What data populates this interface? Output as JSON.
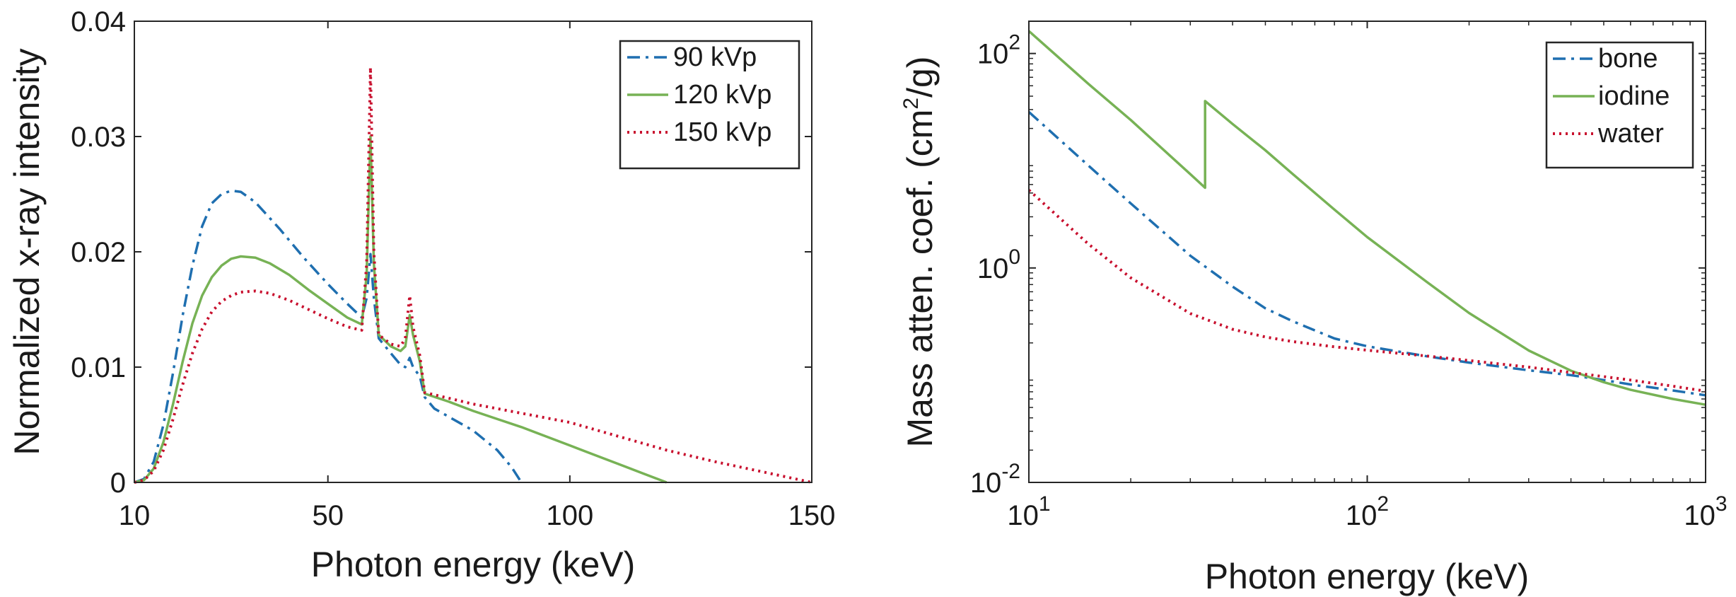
{
  "chart_data": [
    {
      "type": "line",
      "xlabel": "Photon energy (keV)",
      "ylabel": "Normalized x-ray intensity",
      "xlim": [
        10,
        150
      ],
      "ylim": [
        0,
        0.04
      ],
      "xticks": [
        10,
        50,
        100,
        150
      ],
      "xtick_labels": [
        "10",
        "50",
        "100",
        "150"
      ],
      "yticks": [
        0,
        0.01,
        0.02,
        0.03,
        0.04
      ],
      "ytick_labels": [
        "0",
        "0.01",
        "0.02",
        "0.03",
        "0.04"
      ],
      "legend_position": "top-right",
      "series": [
        {
          "name": "90 kVp",
          "color": "#1f6fb0",
          "dash": "dashdot",
          "points": [
            [
              10,
              0
            ],
            [
              12,
              0.0003
            ],
            [
              14,
              0.0018
            ],
            [
              16,
              0.005
            ],
            [
              18,
              0.0095
            ],
            [
              20,
              0.0145
            ],
            [
              22,
              0.0188
            ],
            [
              24,
              0.0222
            ],
            [
              26,
              0.0242
            ],
            [
              28,
              0.025
            ],
            [
              30,
              0.0253
            ],
            [
              32,
              0.0252
            ],
            [
              35,
              0.0243
            ],
            [
              40,
              0.022
            ],
            [
              45,
              0.0195
            ],
            [
              50,
              0.0172
            ],
            [
              54,
              0.0155
            ],
            [
              57,
              0.0143
            ],
            [
              58,
              0.016
            ],
            [
              58.8,
              0.0198
            ],
            [
              59.5,
              0.016
            ],
            [
              60.5,
              0.0125
            ],
            [
              63,
              0.0112
            ],
            [
              65,
              0.0102
            ],
            [
              66,
              0.01
            ],
            [
              66.9,
              0.0108
            ],
            [
              67.6,
              0.01
            ],
            [
              69,
              0.0092
            ],
            [
              70,
              0.0074
            ],
            [
              72,
              0.0064
            ],
            [
              80,
              0.0045
            ],
            [
              85,
              0.0028
            ],
            [
              88,
              0.0013
            ],
            [
              90,
              0
            ]
          ]
        },
        {
          "name": "120 kVp",
          "color": "#77b255",
          "dash": "solid",
          "points": [
            [
              10,
              0
            ],
            [
              12,
              0.0002
            ],
            [
              14,
              0.0012
            ],
            [
              16,
              0.0035
            ],
            [
              18,
              0.0068
            ],
            [
              20,
              0.0105
            ],
            [
              22,
              0.0138
            ],
            [
              24,
              0.0162
            ],
            [
              26,
              0.0178
            ],
            [
              28,
              0.0188
            ],
            [
              30,
              0.0194
            ],
            [
              32,
              0.0196
            ],
            [
              35,
              0.0195
            ],
            [
              38,
              0.019
            ],
            [
              42,
              0.018
            ],
            [
              46,
              0.0167
            ],
            [
              50,
              0.0155
            ],
            [
              54,
              0.0143
            ],
            [
              57,
              0.0137
            ],
            [
              58,
              0.018
            ],
            [
              58.8,
              0.03
            ],
            [
              59.5,
              0.019
            ],
            [
              60.5,
              0.0128
            ],
            [
              63,
              0.0118
            ],
            [
              65,
              0.0114
            ],
            [
              66,
              0.0118
            ],
            [
              66.9,
              0.0145
            ],
            [
              67.6,
              0.0128
            ],
            [
              69,
              0.0105
            ],
            [
              70,
              0.0077
            ],
            [
              75,
              0.007
            ],
            [
              80,
              0.0062
            ],
            [
              85,
              0.0055
            ],
            [
              90,
              0.0048
            ],
            [
              95,
              0.004
            ],
            [
              100,
              0.0032
            ],
            [
              105,
              0.0024
            ],
            [
              110,
              0.0016
            ],
            [
              115,
              0.0008
            ],
            [
              120,
              0
            ]
          ]
        },
        {
          "name": "150 kVp",
          "color": "#c8102e",
          "dash": "dotted",
          "points": [
            [
              10,
              0
            ],
            [
              12,
              0.0002
            ],
            [
              14,
              0.001
            ],
            [
              16,
              0.0028
            ],
            [
              18,
              0.0055
            ],
            [
              20,
              0.0085
            ],
            [
              22,
              0.0112
            ],
            [
              24,
              0.0133
            ],
            [
              26,
              0.0148
            ],
            [
              28,
              0.0157
            ],
            [
              30,
              0.0162
            ],
            [
              32,
              0.0165
            ],
            [
              35,
              0.0166
            ],
            [
              38,
              0.0164
            ],
            [
              42,
              0.0158
            ],
            [
              46,
              0.015
            ],
            [
              50,
              0.0142
            ],
            [
              54,
              0.0135
            ],
            [
              57,
              0.0132
            ],
            [
              58,
              0.019
            ],
            [
              58.8,
              0.036
            ],
            [
              59.5,
              0.02
            ],
            [
              60.5,
              0.0128
            ],
            [
              63,
              0.012
            ],
            [
              65,
              0.0118
            ],
            [
              66,
              0.0125
            ],
            [
              66.9,
              0.0162
            ],
            [
              67.6,
              0.0135
            ],
            [
              69,
              0.011
            ],
            [
              70,
              0.0078
            ],
            [
              75,
              0.0073
            ],
            [
              80,
              0.0068
            ],
            [
              90,
              0.006
            ],
            [
              100,
              0.0052
            ],
            [
              110,
              0.004
            ],
            [
              120,
              0.0028
            ],
            [
              130,
              0.0018
            ],
            [
              140,
              0.0009
            ],
            [
              150,
              0
            ]
          ]
        }
      ]
    },
    {
      "type": "line",
      "xlabel": "Photon energy (keV)",
      "ylabel_prefix": "Mass atten. coef. (cm",
      "ylabel_sup": "2",
      "ylabel_suffix": "/g)",
      "xscale": "log",
      "yscale": "log",
      "xlim": [
        10,
        1000
      ],
      "ylim": [
        0.01,
        200
      ],
      "xticks": [
        {
          "value": 10,
          "base": "10",
          "exp": "1"
        },
        {
          "value": 100,
          "base": "10",
          "exp": "2"
        },
        {
          "value": 1000,
          "base": "10",
          "exp": "3"
        }
      ],
      "yticks": [
        {
          "value": 0.01,
          "base": "10",
          "exp": "-2"
        },
        {
          "value": 1,
          "base": "10",
          "exp": "0"
        },
        {
          "value": 100,
          "base": "10",
          "exp": "2"
        }
      ],
      "legend_position": "top-right",
      "series": [
        {
          "name": "bone",
          "color": "#1f6fb0",
          "dash": "dashdot",
          "points": [
            [
              10,
              28.5
            ],
            [
              15,
              9.0
            ],
            [
              20,
              4.0
            ],
            [
              30,
              1.3
            ],
            [
              40,
              0.67
            ],
            [
              50,
              0.42
            ],
            [
              60,
              0.32
            ],
            [
              80,
              0.22
            ],
            [
              100,
              0.186
            ],
            [
              150,
              0.15
            ],
            [
              200,
              0.131
            ],
            [
              300,
              0.111
            ],
            [
              400,
              0.1
            ],
            [
              500,
              0.09
            ],
            [
              600,
              0.082
            ],
            [
              800,
              0.072
            ],
            [
              1000,
              0.065
            ]
          ]
        },
        {
          "name": "iodine",
          "color": "#77b255",
          "dash": "solid",
          "points": [
            [
              10,
              162
            ],
            [
              15,
              52
            ],
            [
              20,
              24
            ],
            [
              30,
              7.5
            ],
            [
              33.17,
              5.6
            ],
            [
              33.17,
              36
            ],
            [
              40,
              22
            ],
            [
              50,
              12.5
            ],
            [
              60,
              7.6
            ],
            [
              80,
              3.5
            ],
            [
              100,
              1.94
            ],
            [
              150,
              0.74
            ],
            [
              200,
              0.38
            ],
            [
              300,
              0.17
            ],
            [
              400,
              0.11
            ],
            [
              500,
              0.086
            ],
            [
              600,
              0.073
            ],
            [
              800,
              0.06
            ],
            [
              1000,
              0.053
            ]
          ]
        },
        {
          "name": "water",
          "color": "#c8102e",
          "dash": "dotted",
          "points": [
            [
              10,
              5.33
            ],
            [
              15,
              1.67
            ],
            [
              20,
              0.81
            ],
            [
              30,
              0.376
            ],
            [
              40,
              0.268
            ],
            [
              50,
              0.227
            ],
            [
              60,
              0.206
            ],
            [
              80,
              0.184
            ],
            [
              100,
              0.171
            ],
            [
              150,
              0.151
            ],
            [
              200,
              0.137
            ],
            [
              300,
              0.119
            ],
            [
              400,
              0.106
            ],
            [
              500,
              0.097
            ],
            [
              600,
              0.09
            ],
            [
              800,
              0.079
            ],
            [
              1000,
              0.071
            ]
          ]
        }
      ]
    }
  ]
}
